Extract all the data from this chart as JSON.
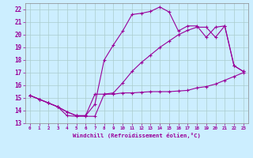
{
  "xlabel": "Windchill (Refroidissement éolien,°C)",
  "bg_color": "#cceeff",
  "line_color": "#990099",
  "grid_color": "#aacccc",
  "xlim": [
    -0.5,
    23.5
  ],
  "ylim": [
    13,
    22.5
  ],
  "xticks": [
    0,
    1,
    2,
    3,
    4,
    5,
    6,
    7,
    8,
    9,
    10,
    11,
    12,
    13,
    14,
    15,
    16,
    17,
    18,
    19,
    20,
    21,
    22,
    23
  ],
  "yticks": [
    13,
    14,
    15,
    16,
    17,
    18,
    19,
    20,
    21,
    22
  ],
  "line1_x": [
    0,
    1,
    2,
    3,
    4,
    5,
    6,
    7,
    8,
    9,
    10,
    11,
    12,
    13,
    14,
    15,
    16,
    17,
    18,
    19,
    20,
    21,
    22,
    23
  ],
  "line1_y": [
    15.2,
    14.9,
    14.6,
    14.3,
    13.6,
    13.55,
    13.55,
    13.55,
    15.3,
    15.3,
    15.4,
    15.4,
    15.45,
    15.5,
    15.5,
    15.5,
    15.55,
    15.6,
    15.8,
    15.9,
    16.1,
    16.4,
    16.7,
    17.0
  ],
  "line2_x": [
    0,
    1,
    2,
    3,
    4,
    5,
    6,
    7,
    8,
    9,
    10,
    11,
    12,
    13,
    14,
    15,
    16,
    17,
    18,
    19,
    20,
    21,
    22,
    23
  ],
  "line2_y": [
    15.2,
    14.9,
    14.6,
    14.3,
    13.9,
    13.6,
    13.6,
    14.5,
    18.0,
    19.2,
    20.3,
    21.6,
    21.7,
    21.85,
    22.2,
    21.8,
    20.3,
    20.7,
    20.7,
    19.8,
    20.6,
    20.7,
    17.55,
    17.1
  ],
  "line3_x": [
    0,
    1,
    2,
    3,
    4,
    5,
    6,
    7,
    8,
    9,
    10,
    11,
    12,
    13,
    14,
    15,
    16,
    17,
    18,
    19,
    20,
    21,
    22,
    23
  ],
  "line3_y": [
    15.2,
    14.9,
    14.6,
    14.3,
    13.9,
    13.6,
    13.6,
    15.3,
    15.3,
    15.4,
    16.2,
    17.1,
    17.8,
    18.4,
    19.0,
    19.5,
    20.0,
    20.35,
    20.6,
    20.6,
    19.8,
    20.7,
    17.55,
    17.1
  ]
}
